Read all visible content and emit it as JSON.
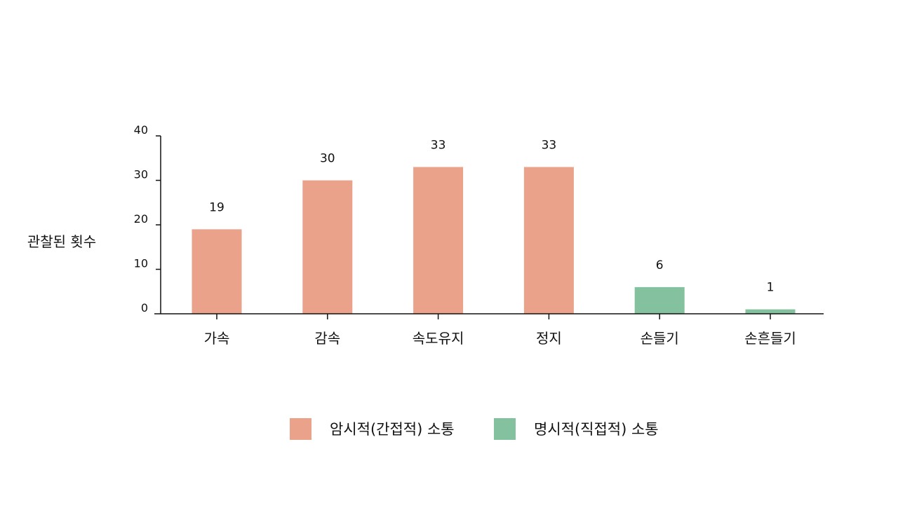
{
  "chart_data": {
    "type": "bar",
    "categories": [
      "가속",
      "감속",
      "속도유지",
      "정지",
      "손들기",
      "손흔들기"
    ],
    "values": [
      19,
      30,
      33,
      33,
      6,
      1
    ],
    "value_labels": [
      "19",
      "30",
      "33",
      "33",
      "6",
      "1"
    ],
    "bar_groups": [
      "implicit",
      "implicit",
      "implicit",
      "implicit",
      "explicit",
      "explicit"
    ],
    "series": [
      {
        "key": "implicit",
        "name": "암시적(간접적) 소통",
        "color": "#EBA28A"
      },
      {
        "key": "explicit",
        "name": "명시적(직접적) 소통",
        "color": "#84C29F"
      }
    ],
    "title": "",
    "xlabel": "",
    "ylabel": "관찰된 횟수",
    "ylim": [
      0,
      40
    ],
    "yticks": [
      "0",
      "10",
      "20",
      "30",
      "40"
    ],
    "grid": false,
    "legend_position": "bottom"
  }
}
